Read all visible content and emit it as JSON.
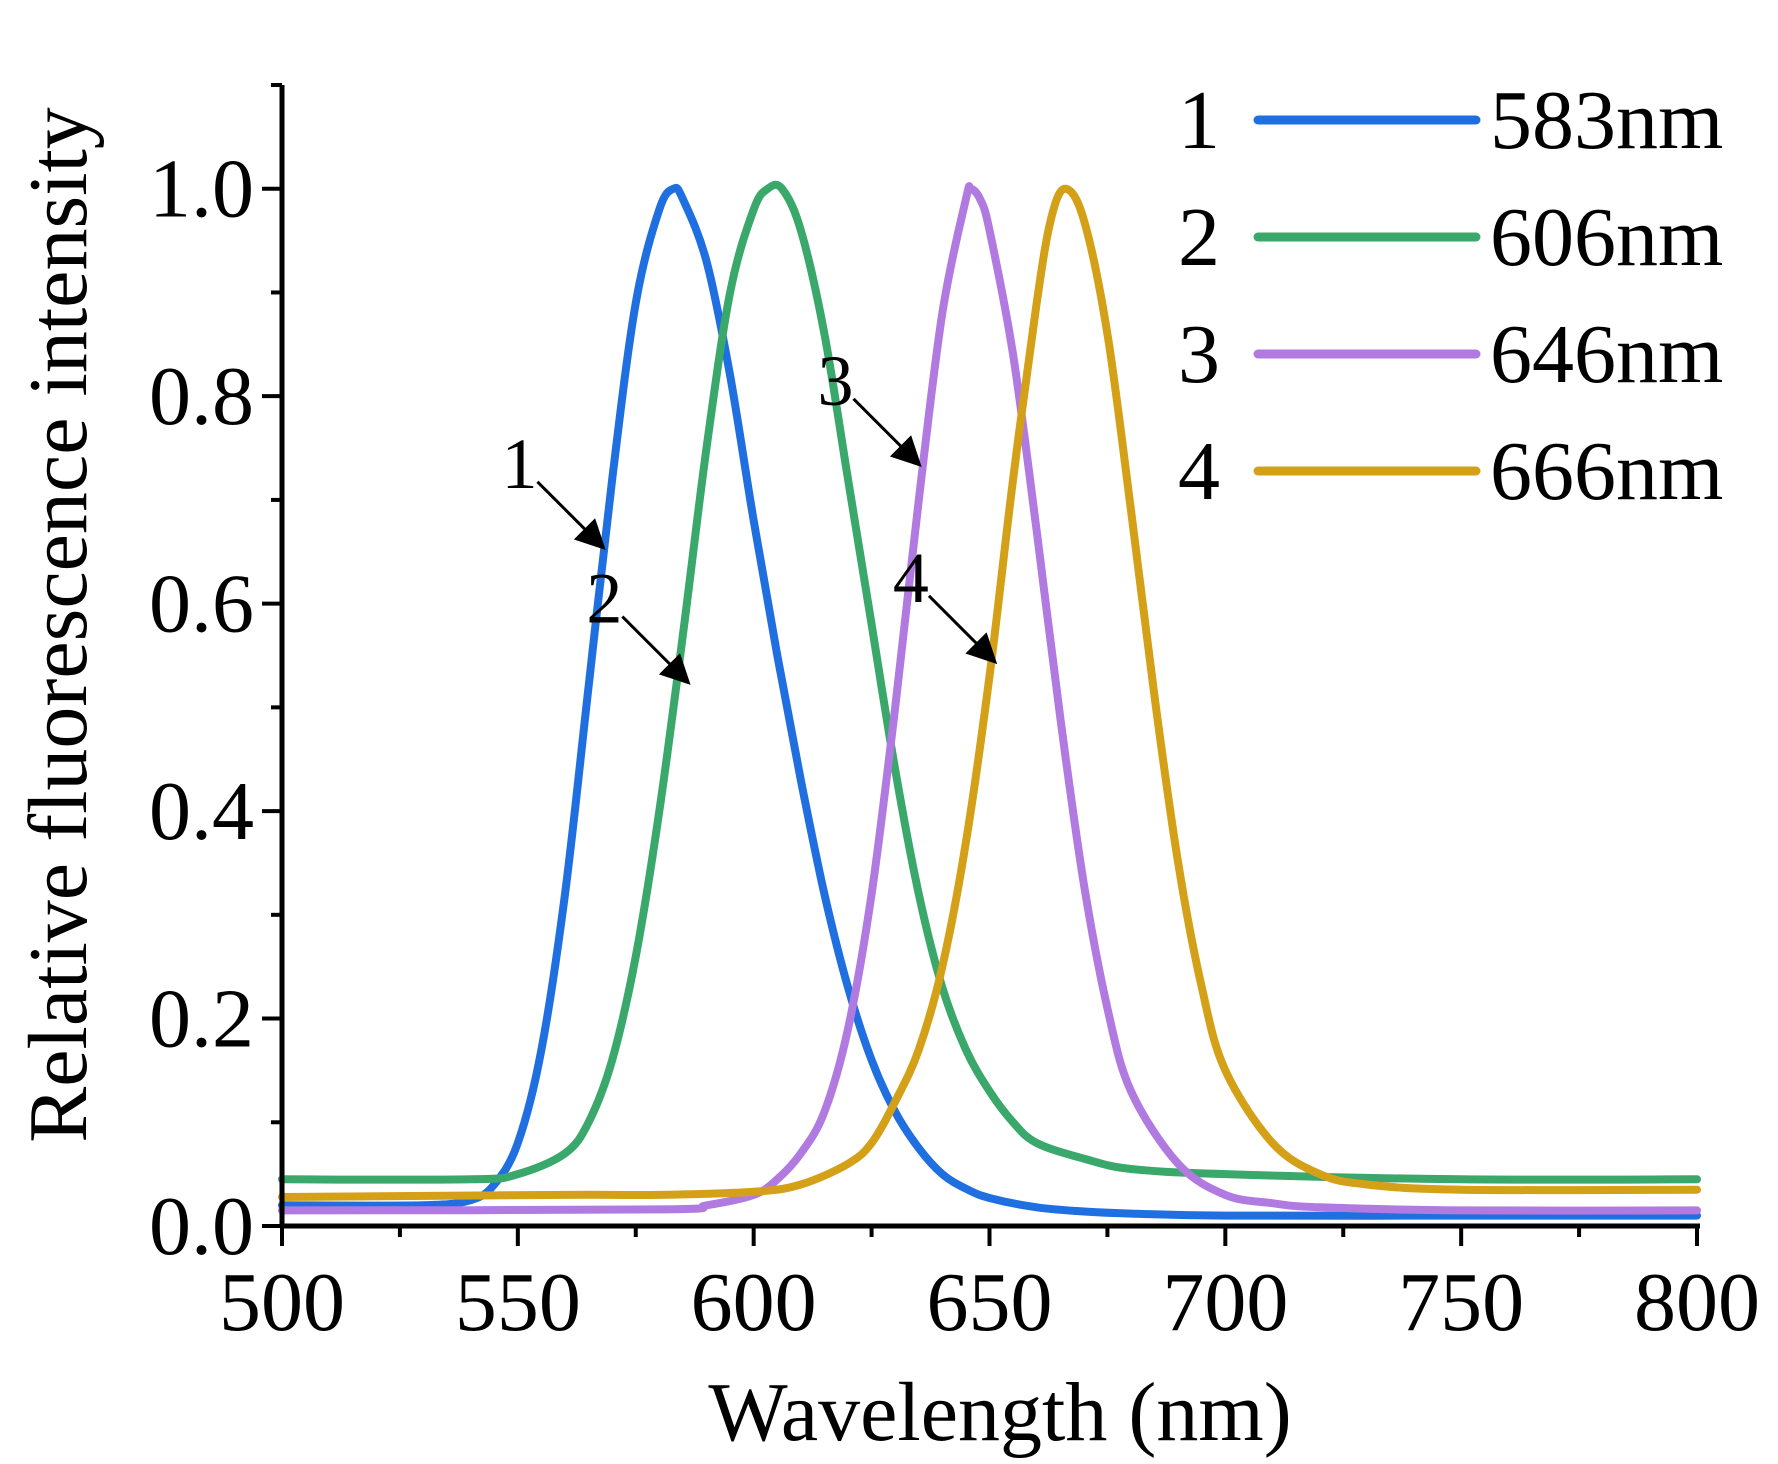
{
  "chart_data": {
    "type": "line",
    "title": "",
    "xlabel": "Wavelength (nm)",
    "ylabel": "Relative fluorescence intensity",
    "xlim": [
      500,
      800
    ],
    "ylim": [
      0.0,
      1.1
    ],
    "x_ticks": [
      500,
      550,
      600,
      650,
      700,
      750,
      800
    ],
    "x_tick_labels": [
      "500",
      "550",
      "600",
      "650",
      "700",
      "750",
      "800"
    ],
    "y_ticks": [
      0.0,
      0.2,
      0.4,
      0.6,
      0.8,
      1.0
    ],
    "y_tick_labels": [
      "0.0",
      "0.2",
      "0.4",
      "0.6",
      "0.8",
      "1.0"
    ],
    "grid": false,
    "legend_position": "top-right",
    "series": [
      {
        "name": "1",
        "label": "583nm",
        "color": "#1f6fe0",
        "x": [
          500,
          530,
          540,
          545,
          550,
          555,
          560,
          565,
          570,
          575,
          580,
          583,
          585,
          590,
          595,
          600,
          605,
          610,
          615,
          620,
          625,
          630,
          635,
          640,
          645,
          650,
          660,
          670,
          680,
          700,
          750,
          800
        ],
        "y": [
          0.02,
          0.02,
          0.025,
          0.04,
          0.08,
          0.17,
          0.32,
          0.52,
          0.72,
          0.89,
          0.98,
          1.0,
          0.99,
          0.93,
          0.82,
          0.68,
          0.55,
          0.43,
          0.32,
          0.23,
          0.16,
          0.11,
          0.075,
          0.05,
          0.036,
          0.027,
          0.018,
          0.014,
          0.012,
          0.01,
          0.01,
          0.01
        ]
      },
      {
        "name": "2",
        "label": "606nm",
        "color": "#3aa86b",
        "x": [
          500,
          540,
          550,
          560,
          565,
          570,
          575,
          580,
          585,
          590,
          595,
          600,
          603,
          606,
          610,
          615,
          620,
          625,
          630,
          635,
          640,
          645,
          650,
          655,
          660,
          670,
          680,
          700,
          750,
          800
        ],
        "y": [
          0.045,
          0.045,
          0.05,
          0.07,
          0.1,
          0.16,
          0.26,
          0.4,
          0.57,
          0.75,
          0.9,
          0.98,
          1.0,
          1.0,
          0.96,
          0.86,
          0.72,
          0.58,
          0.44,
          0.32,
          0.23,
          0.17,
          0.13,
          0.1,
          0.08,
          0.065,
          0.055,
          0.05,
          0.045,
          0.045
        ]
      },
      {
        "name": "3",
        "label": "646nm",
        "color": "#b07ae0",
        "x": [
          500,
          580,
          590,
          600,
          605,
          610,
          615,
          620,
          625,
          630,
          635,
          640,
          645,
          646,
          648,
          650,
          655,
          660,
          665,
          670,
          675,
          680,
          690,
          700,
          710,
          720,
          750,
          800
        ],
        "y": [
          0.015,
          0.016,
          0.02,
          0.03,
          0.045,
          0.07,
          0.11,
          0.19,
          0.32,
          0.5,
          0.7,
          0.88,
          0.99,
          1.0,
          0.99,
          0.96,
          0.84,
          0.67,
          0.49,
          0.33,
          0.21,
          0.13,
          0.06,
          0.03,
          0.022,
          0.018,
          0.015,
          0.015
        ]
      },
      {
        "name": "4",
        "label": "666nm",
        "color": "#d4a017",
        "x": [
          500,
          560,
          580,
          600,
          610,
          620,
          625,
          630,
          635,
          640,
          645,
          650,
          655,
          660,
          663,
          666,
          670,
          675,
          680,
          685,
          690,
          695,
          700,
          710,
          720,
          730,
          750,
          800
        ],
        "y": [
          0.028,
          0.03,
          0.03,
          0.033,
          0.04,
          0.06,
          0.08,
          0.12,
          0.17,
          0.25,
          0.37,
          0.53,
          0.72,
          0.89,
          0.97,
          1.0,
          0.97,
          0.86,
          0.69,
          0.51,
          0.35,
          0.23,
          0.15,
          0.08,
          0.05,
          0.04,
          0.035,
          0.035
        ]
      }
    ],
    "annotations": [
      {
        "text": "1",
        "series": "1",
        "x": 569,
        "y": 0.65
      },
      {
        "text": "2",
        "series": "2",
        "x": 587,
        "y": 0.52
      },
      {
        "text": "3",
        "series": "3",
        "x": 636,
        "y": 0.73
      },
      {
        "text": "4",
        "series": "4",
        "x": 652,
        "y": 0.54
      }
    ]
  }
}
